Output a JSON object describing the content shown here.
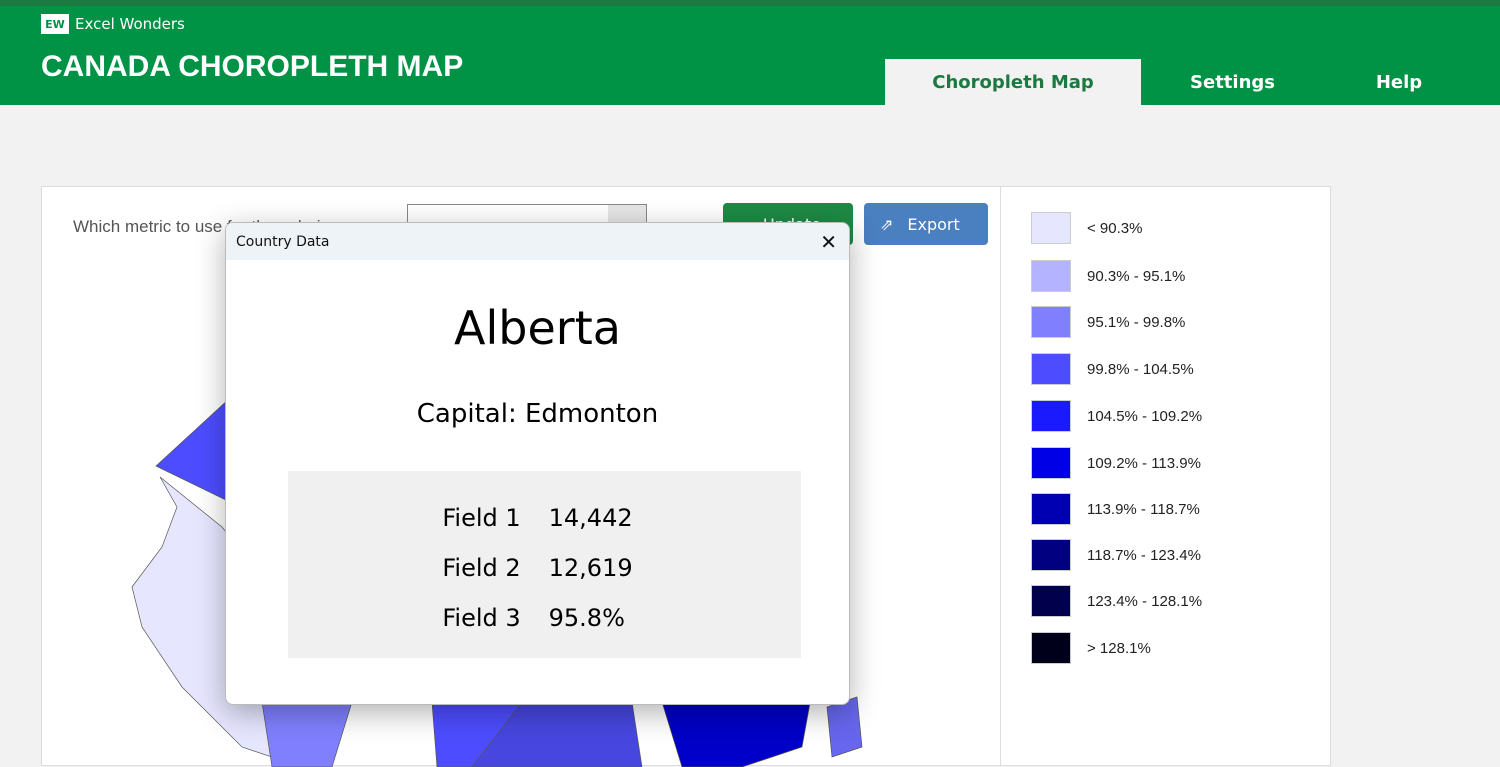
{
  "header": {
    "brand": "Excel Wonders",
    "logo": "EW",
    "title": "CANADA CHOROPLETH MAP",
    "tabs": [
      {
        "label": "Choropleth Map",
        "active": true
      },
      {
        "label": "Settings"
      },
      {
        "label": "Help"
      }
    ]
  },
  "controls": {
    "metric_label": "Which metric to use for the coloring",
    "select_value": "",
    "update_label": "Update",
    "export_label": "Export"
  },
  "legend": [
    {
      "label": "< 90.3%",
      "color": "#e6e6ff"
    },
    {
      "label": "90.3% - 95.1%",
      "color": "#b3b3ff"
    },
    {
      "label": "95.1% - 99.8%",
      "color": "#8080ff"
    },
    {
      "label": "99.8% - 104.5%",
      "color": "#4d4dff"
    },
    {
      "label": "104.5% - 109.2%",
      "color": "#1a1aff"
    },
    {
      "label": "109.2% - 113.9%",
      "color": "#0000e6"
    },
    {
      "label": "113.9% - 118.7%",
      "color": "#0000b3"
    },
    {
      "label": "118.7% - 123.4%",
      "color": "#000080"
    },
    {
      "label": "123.4% - 128.1%",
      "color": "#00004d"
    },
    {
      "label": "> 128.1%",
      "color": "#00001a"
    }
  ],
  "dialog": {
    "title": "Country Data",
    "name": "Alberta",
    "capital": "Capital: Edmonton",
    "fields": [
      {
        "label": "Field 1",
        "value": "14,442"
      },
      {
        "label": "Field 2",
        "value": "12,619"
      },
      {
        "label": "Field 3",
        "value": "95.8%"
      }
    ]
  }
}
